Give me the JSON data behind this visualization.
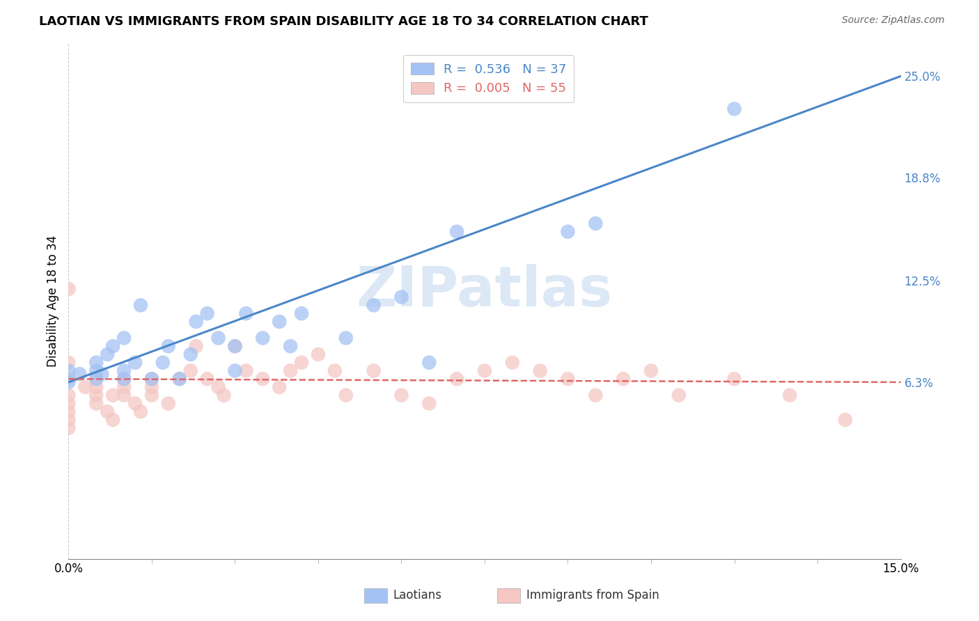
{
  "title": "LAOTIAN VS IMMIGRANTS FROM SPAIN DISABILITY AGE 18 TO 34 CORRELATION CHART",
  "source_text": "Source: ZipAtlas.com",
  "ylabel": "Disability Age 18 to 34",
  "xlim": [
    0.0,
    0.15
  ],
  "ylim": [
    -0.045,
    0.27
  ],
  "ytick_labels_right": [
    "6.3%",
    "12.5%",
    "18.8%",
    "25.0%"
  ],
  "ytick_vals_right": [
    0.063,
    0.125,
    0.188,
    0.25
  ],
  "legend_label1": "Laotians",
  "legend_label2": "Immigrants from Spain",
  "R1": "0.536",
  "N1": "37",
  "R2": "0.005",
  "N2": "55",
  "color_laotian": "#a4c2f4",
  "color_spain": "#f4c7c3",
  "color_trendline1": "#4a86c8",
  "color_trendline2": "#e06666",
  "watermark_color": "#dce8f5",
  "background_color": "#ffffff",
  "grid_color": "#cccccc",
  "laotian_x": [
    0.0,
    0.0,
    0.002,
    0.005,
    0.005,
    0.005,
    0.006,
    0.007,
    0.008,
    0.01,
    0.01,
    0.01,
    0.012,
    0.013,
    0.015,
    0.017,
    0.018,
    0.02,
    0.022,
    0.023,
    0.025,
    0.027,
    0.03,
    0.03,
    0.032,
    0.035,
    0.038,
    0.04,
    0.042,
    0.05,
    0.055,
    0.06,
    0.065,
    0.07,
    0.09,
    0.095,
    0.12
  ],
  "laotian_y": [
    0.063,
    0.07,
    0.068,
    0.065,
    0.07,
    0.075,
    0.068,
    0.08,
    0.085,
    0.065,
    0.07,
    0.09,
    0.075,
    0.11,
    0.065,
    0.075,
    0.085,
    0.065,
    0.08,
    0.1,
    0.105,
    0.09,
    0.07,
    0.085,
    0.105,
    0.09,
    0.1,
    0.085,
    0.105,
    0.09,
    0.11,
    0.115,
    0.075,
    0.155,
    0.155,
    0.16,
    0.23
  ],
  "spain_x": [
    0.0,
    0.0,
    0.0,
    0.0,
    0.0,
    0.0,
    0.0,
    0.0,
    0.003,
    0.005,
    0.005,
    0.005,
    0.005,
    0.007,
    0.008,
    0.008,
    0.01,
    0.01,
    0.01,
    0.012,
    0.013,
    0.015,
    0.015,
    0.015,
    0.018,
    0.02,
    0.022,
    0.023,
    0.025,
    0.027,
    0.028,
    0.03,
    0.032,
    0.035,
    0.038,
    0.04,
    0.042,
    0.045,
    0.048,
    0.05,
    0.055,
    0.06,
    0.065,
    0.07,
    0.075,
    0.08,
    0.085,
    0.09,
    0.095,
    0.1,
    0.105,
    0.11,
    0.12,
    0.13,
    0.14
  ],
  "spain_y": [
    0.075,
    0.065,
    0.055,
    0.05,
    0.045,
    0.04,
    0.035,
    0.12,
    0.06,
    0.065,
    0.06,
    0.055,
    0.05,
    0.045,
    0.055,
    0.04,
    0.065,
    0.06,
    0.055,
    0.05,
    0.045,
    0.065,
    0.06,
    0.055,
    0.05,
    0.065,
    0.07,
    0.085,
    0.065,
    0.06,
    0.055,
    0.085,
    0.07,
    0.065,
    0.06,
    0.07,
    0.075,
    0.08,
    0.07,
    0.055,
    0.07,
    0.055,
    0.05,
    0.065,
    0.07,
    0.075,
    0.07,
    0.065,
    0.055,
    0.065,
    0.07,
    0.055,
    0.065,
    0.055,
    0.04
  ],
  "trendline1_x0": 0.0,
  "trendline1_y0": 0.063,
  "trendline1_x1": 0.15,
  "trendline1_y1": 0.25,
  "trendline2_x0": 0.0,
  "trendline2_y0": 0.065,
  "trendline2_x1": 0.15,
  "trendline2_y1": 0.063
}
